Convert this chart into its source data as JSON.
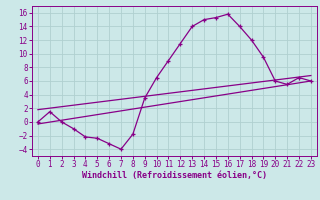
{
  "bg_color": "#cce8e8",
  "grid_color": "#b0d0d0",
  "line_color": "#880088",
  "xlabel": "Windchill (Refroidissement éolien,°C)",
  "xlabel_fontsize": 6.0,
  "tick_fontsize": 5.5,
  "xlim": [
    -0.5,
    23.5
  ],
  "ylim": [
    -5.0,
    17.0
  ],
  "yticks": [
    -4,
    -2,
    0,
    2,
    4,
    6,
    8,
    10,
    12,
    14,
    16
  ],
  "xticks": [
    0,
    1,
    2,
    3,
    4,
    5,
    6,
    7,
    8,
    9,
    10,
    11,
    12,
    13,
    14,
    15,
    16,
    17,
    18,
    19,
    20,
    21,
    22,
    23
  ],
  "curve1_x": [
    0,
    1,
    2,
    3,
    4,
    5,
    6,
    7,
    8,
    9,
    10,
    11,
    12,
    13,
    14,
    15,
    16,
    17,
    18,
    19,
    20,
    21,
    22,
    23
  ],
  "curve1_y": [
    0,
    1.5,
    0,
    -1,
    -2.2,
    -2.4,
    -3.2,
    -4,
    -1.8,
    3.5,
    6.5,
    9,
    11.5,
    14,
    15,
    15.3,
    15.8,
    14,
    12,
    9.5,
    6,
    5.5,
    6.5,
    6
  ],
  "line2_x": [
    0,
    23
  ],
  "line2_y": [
    -0.3,
    6.0
  ],
  "line3_x": [
    0,
    23
  ],
  "line3_y": [
    1.8,
    6.8
  ]
}
